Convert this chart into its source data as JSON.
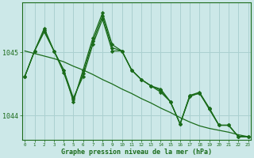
{
  "title": "Graphe pression niveau de la mer (hPa)",
  "bg_color": "#cce8e8",
  "grid_color": "#aad0d0",
  "line_color": "#1a6b1a",
  "marker_color": "#1a6b1a",
  "ylabel_ticks": [
    1044,
    1045
  ],
  "xlim": [
    -0.3,
    23.3
  ],
  "ylim": [
    1043.62,
    1045.78
  ],
  "series1": [
    1044.62,
    1045.02,
    1045.32,
    1045.02,
    1044.72,
    1044.28,
    1044.62,
    1045.12,
    1045.52,
    1045.02,
    1045.02,
    1044.72,
    1044.57,
    1044.47,
    1044.42,
    1044.22,
    1043.87,
    1044.32,
    1044.35,
    1044.12,
    1043.85,
    1043.85,
    1043.67,
    1043.67
  ],
  "series2": [
    1044.62,
    1045.02,
    1045.38,
    1045.02,
    1044.72,
    1044.22,
    1044.72,
    1045.22,
    1045.62,
    1045.12,
    1045.02,
    1044.72,
    1044.57,
    1044.47,
    1044.37,
    1044.22,
    1043.87,
    1044.32,
    1044.37,
    1044.12,
    1043.85,
    1043.85,
    1043.67,
    1043.67
  ],
  "series3": [
    1044.62,
    1045.02,
    1045.35,
    1045.02,
    1044.68,
    1044.25,
    1044.67,
    1045.17,
    1045.57,
    1045.07,
    1045.02,
    1044.72,
    1044.57,
    1044.47,
    1044.4,
    1044.22,
    1043.87,
    1044.3,
    1044.36,
    1044.1,
    1043.85,
    1043.85,
    1043.67,
    1043.67
  ],
  "trend": [
    1045.02,
    1044.98,
    1044.94,
    1044.9,
    1044.85,
    1044.78,
    1044.72,
    1044.65,
    1044.57,
    1044.5,
    1044.42,
    1044.35,
    1044.27,
    1044.2,
    1044.12,
    1044.05,
    1043.97,
    1043.9,
    1043.84,
    1043.8,
    1043.77,
    1043.74,
    1043.7,
    1043.67
  ],
  "hours": [
    0,
    1,
    2,
    3,
    4,
    5,
    6,
    7,
    8,
    9,
    10,
    11,
    12,
    13,
    14,
    15,
    16,
    17,
    18,
    19,
    20,
    21,
    22,
    23
  ]
}
